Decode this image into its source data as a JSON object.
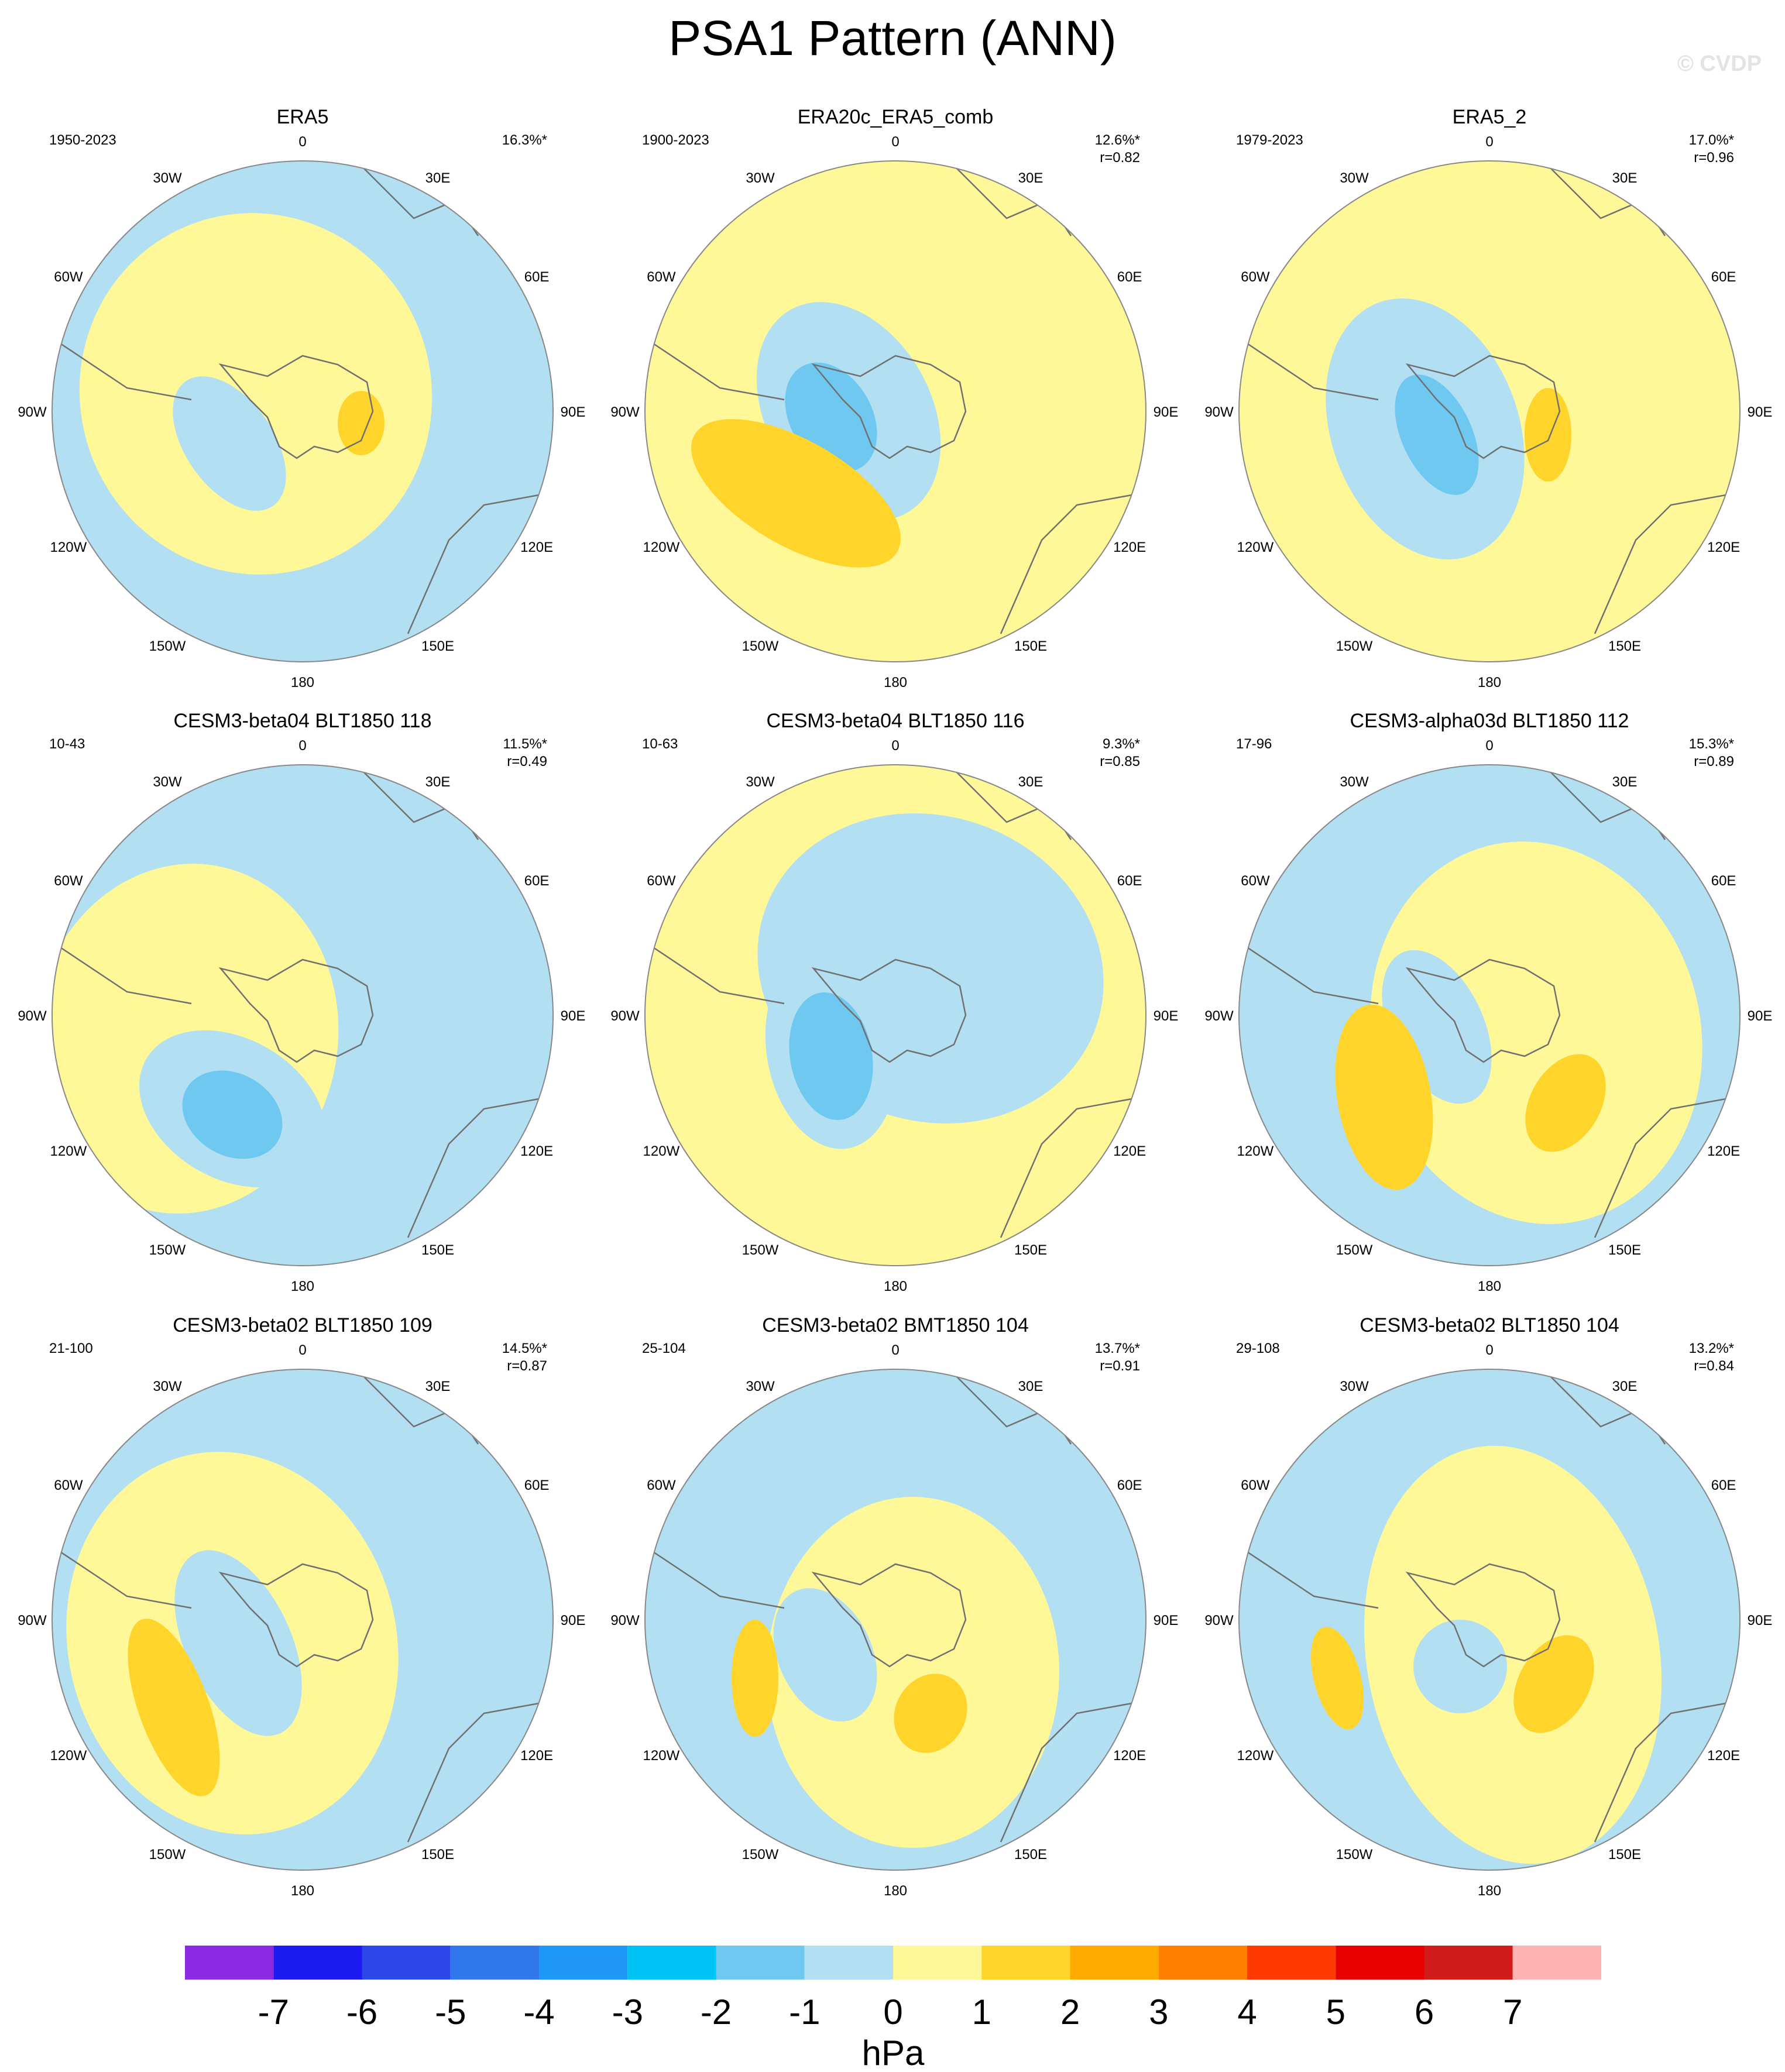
{
  "title": "PSA1 Pattern (ANN)",
  "watermark": "© CVDP",
  "colors": {
    "ocean_light": "#b3dff2",
    "ocean_mid": "#6ec8f0",
    "ocean_deep": "#14b8f0",
    "pos_light": "#fff899",
    "pos_mid": "#ffd52b",
    "coast": "#707070",
    "rim": "#888888"
  },
  "lon_labels": [
    "0",
    "30E",
    "60E",
    "90E",
    "120E",
    "150E",
    "180",
    "150W",
    "120W",
    "90W",
    "60W",
    "30W"
  ],
  "panels": [
    {
      "name": "ERA5",
      "period": "1950-2023",
      "pct": "16.3%*",
      "r": ""
    },
    {
      "name": "ERA20c_ERA5_comb",
      "period": "1900-2023",
      "pct": "12.6%*",
      "r": "r=0.82"
    },
    {
      "name": "ERA5_2",
      "period": "1979-2023",
      "pct": "17.0%*",
      "r": "r=0.96"
    },
    {
      "name": "CESM3-beta04 BLT1850 118",
      "period": "10-43",
      "pct": "11.5%*",
      "r": "r=0.49"
    },
    {
      "name": "CESM3-beta04 BLT1850 116",
      "period": "10-63",
      "pct": "9.3%*",
      "r": "r=0.85"
    },
    {
      "name": "CESM3-alpha03d BLT1850 112",
      "period": "17-96",
      "pct": "15.3%*",
      "r": "r=0.89"
    },
    {
      "name": "CESM3-beta02 BLT1850 109",
      "period": "21-100",
      "pct": "14.5%*",
      "r": "r=0.87"
    },
    {
      "name": "CESM3-beta02 BMT1850 104",
      "period": "25-104",
      "pct": "13.7%*",
      "r": "r=0.91"
    },
    {
      "name": "CESM3-beta02 BLT1850 104",
      "period": "29-108",
      "pct": "13.2%*",
      "r": "r=0.84"
    }
  ],
  "colorbar": {
    "unit": "hPa",
    "labels": [
      "-7",
      "-6",
      "-5",
      "-4",
      "-3",
      "-2",
      "-1",
      "0",
      "1",
      "2",
      "3",
      "4",
      "5",
      "6",
      "7"
    ],
    "colors": [
      "#8a2be2",
      "#1c1cf0",
      "#2c46e8",
      "#3078ea",
      "#1f98f5",
      "#00c3f5",
      "#6ec8f0",
      "#b3dff2",
      "#fff899",
      "#ffd52b",
      "#ffaa00",
      "#ff7f00",
      "#ff3a00",
      "#e60000",
      "#d11c1c",
      "#ffb3b3"
    ]
  }
}
